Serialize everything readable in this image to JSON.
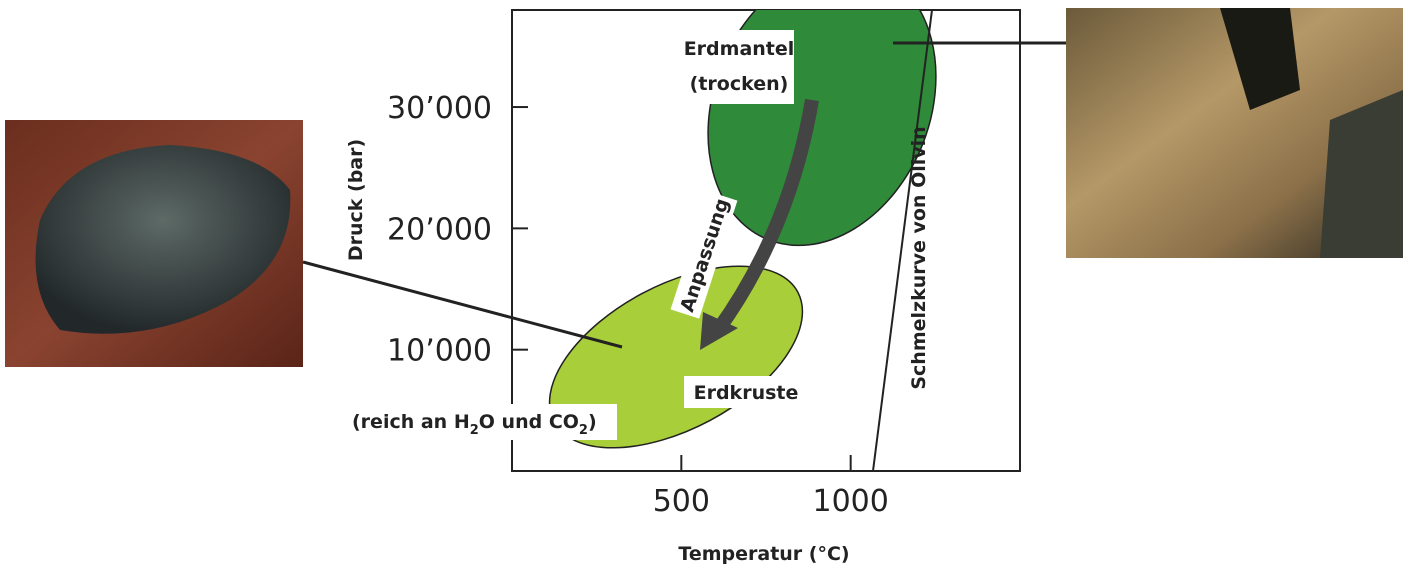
{
  "axes": {
    "x_label": "Temperatur (°C)",
    "y_label": "Druck (bar)",
    "xlim": [
      0,
      1500
    ],
    "ylim": [
      0,
      38000
    ],
    "xticks": [
      500,
      1000
    ],
    "yticks": [
      {
        "value": 10000,
        "label": "10’000"
      },
      {
        "value": 20000,
        "label": "20’000"
      },
      {
        "value": 30000,
        "label": "30’000"
      }
    ]
  },
  "labels": {
    "mantle": [
      "Erdmantel",
      "(trocken)"
    ],
    "crust": "Erdkruste",
    "crust_note": [
      "(reich an H",
      "2",
      "O und CO",
      "2",
      ")"
    ],
    "arrow": "Anpassung",
    "curve": "Schmelzkurve von Olivin"
  }
}
